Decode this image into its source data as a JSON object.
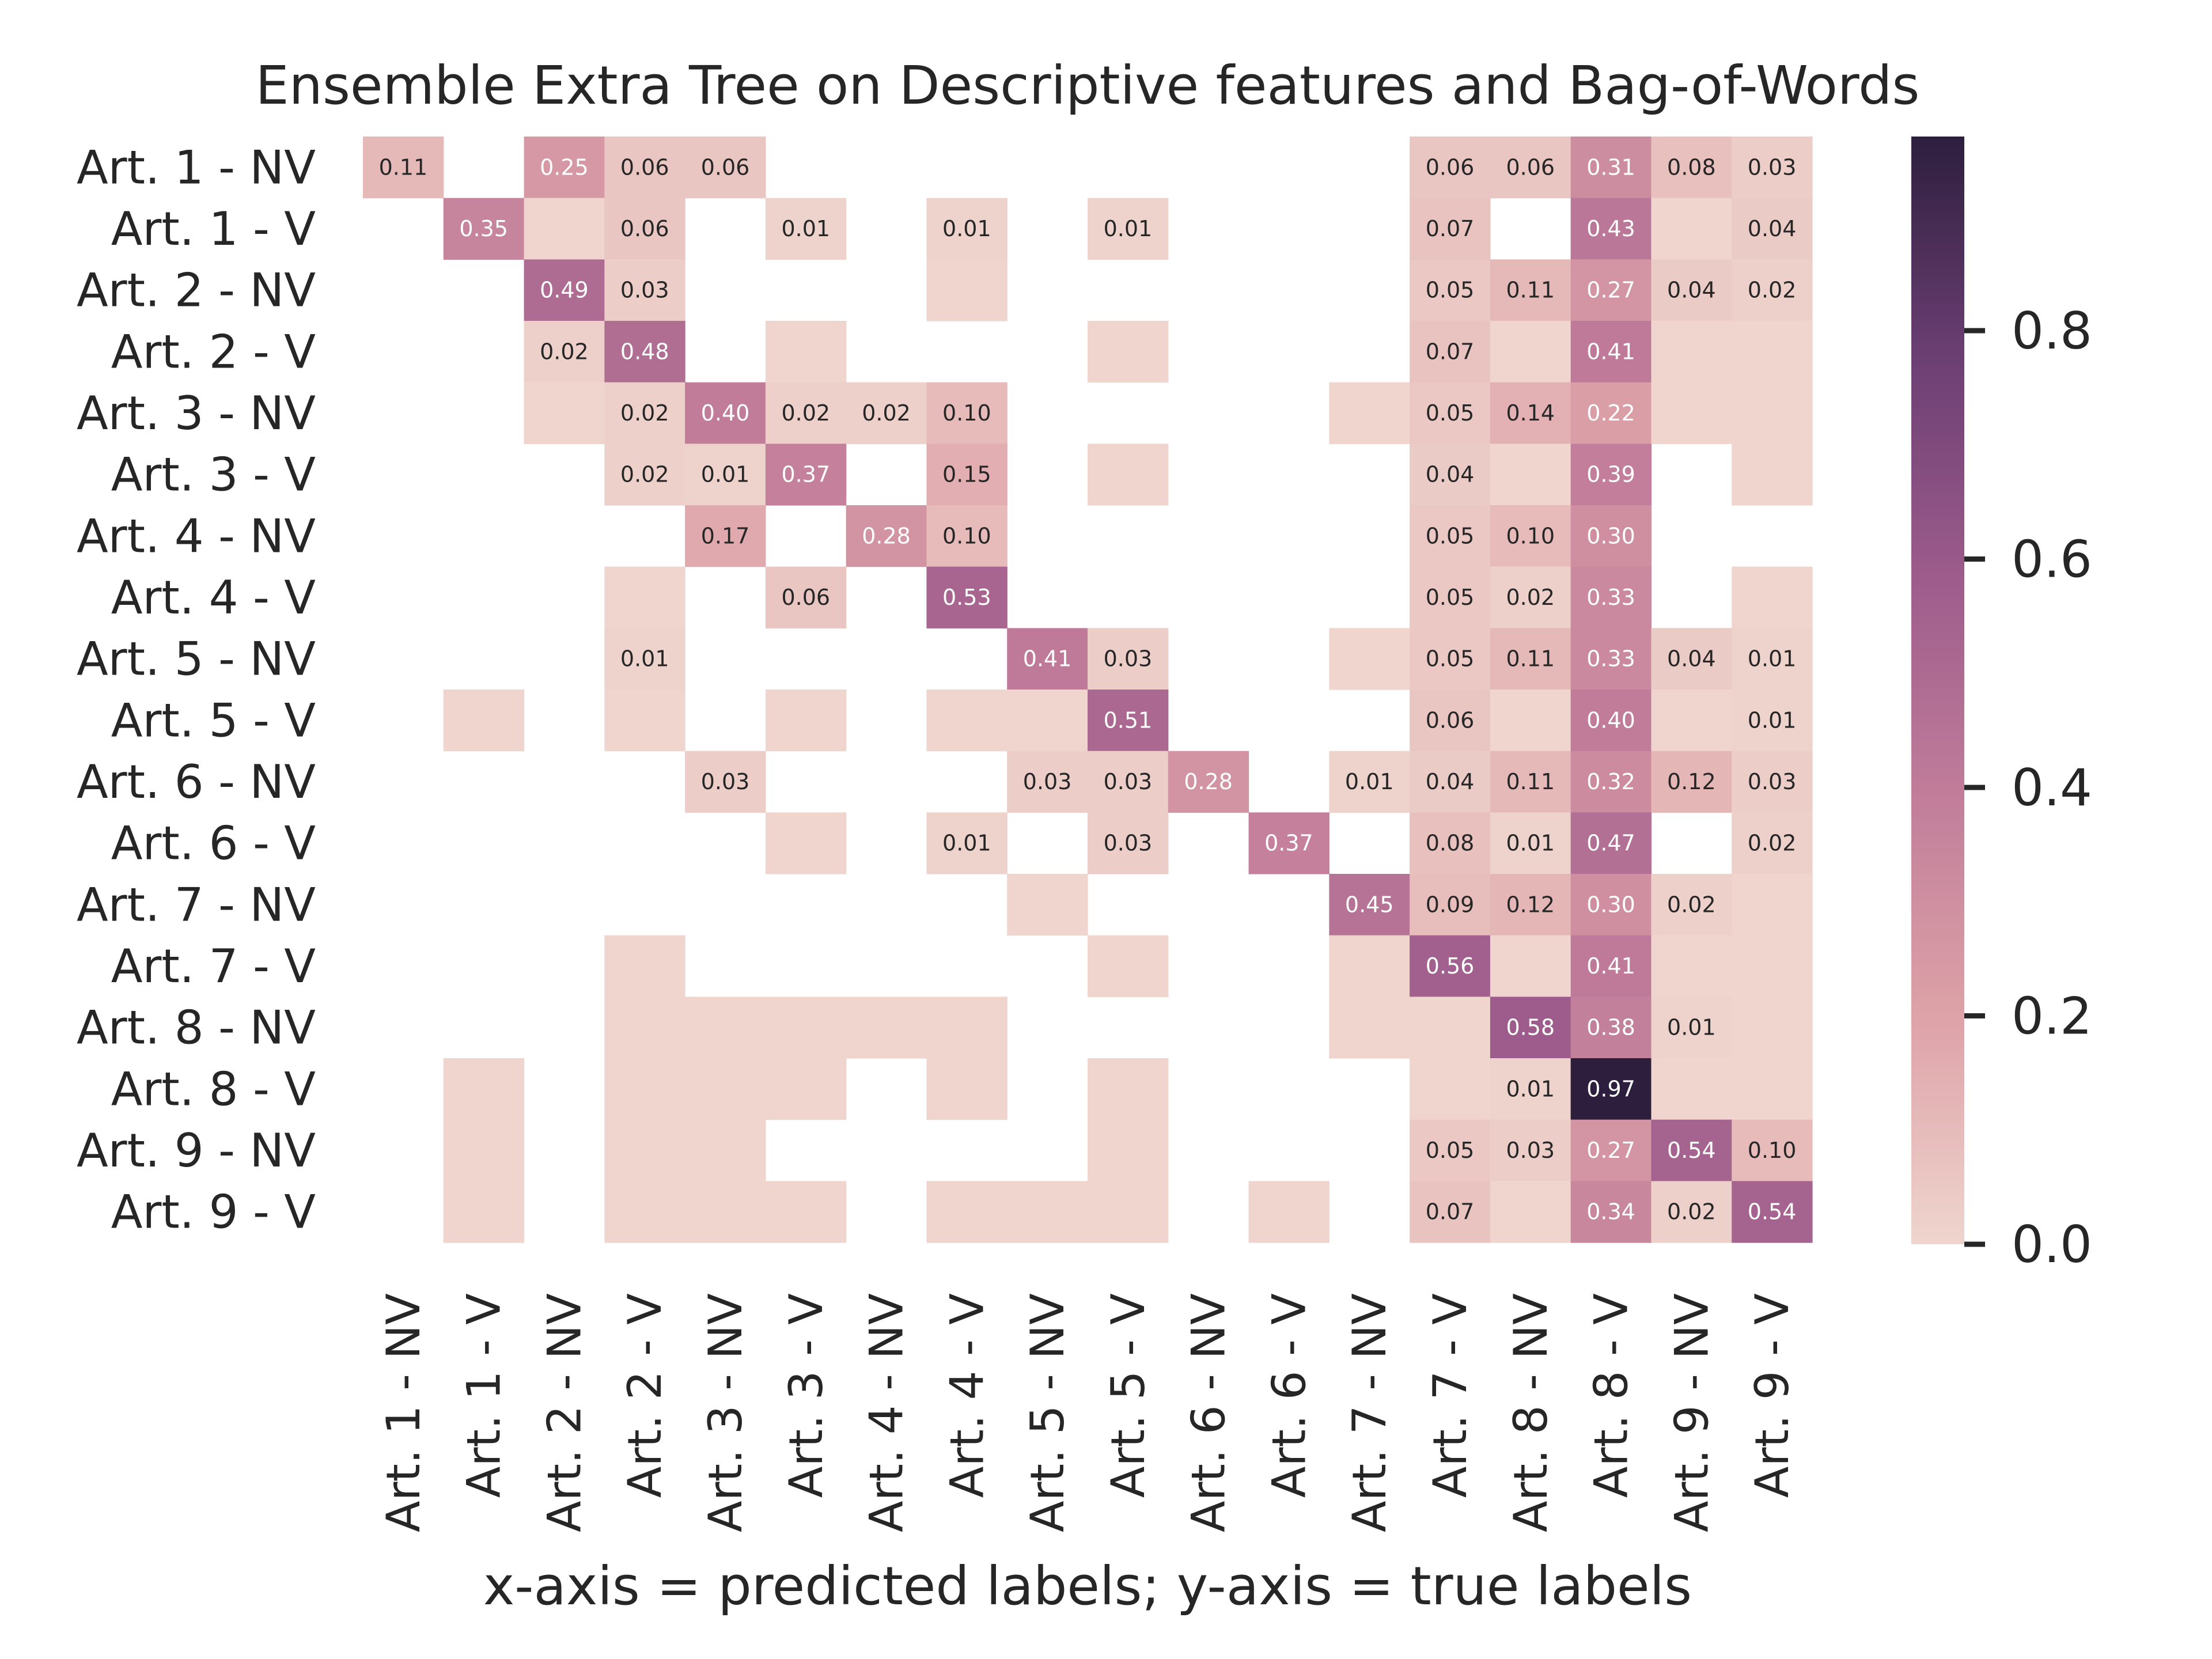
{
  "chart_data": {
    "type": "heatmap",
    "title": "Ensemble Extra Tree on Descriptive features and Bag-of-Words",
    "xlabel": "x-axis = predicted labels; y-axis = true labels",
    "ylabel": "",
    "x_categories": [
      "Art. 1 - NV",
      "Art. 1 - V",
      "Art. 2 - NV",
      "Art. 2 - V",
      "Art. 3 - NV",
      "Art. 3 - V",
      "Art. 4 - NV",
      "Art. 4 - V",
      "Art. 5 - NV",
      "Art. 5 - V",
      "Art. 6 - NV",
      "Art. 6 - V",
      "Art. 7 - NV",
      "Art. 7 - V",
      "Art. 8 - NV",
      "Art. 8 - V",
      "Art. 9 - NV",
      "Art. 9 - V"
    ],
    "y_categories": [
      "Art. 1 - NV",
      "Art. 1 - V",
      "Art. 2 - NV",
      "Art. 2 - V",
      "Art. 3 - NV",
      "Art. 3 - V",
      "Art. 4 - NV",
      "Art. 4 - V",
      "Art. 5 - NV",
      "Art. 5 - V",
      "Art. 6 - NV",
      "Art. 6 - V",
      "Art. 7 - NV",
      "Art. 7 - V",
      "Art. 8 - NV",
      "Art. 8 - V",
      "Art. 9 - NV",
      "Art. 9 - V"
    ],
    "values": [
      [
        0.11,
        null,
        0.25,
        0.06,
        0.06,
        null,
        null,
        null,
        null,
        null,
        null,
        null,
        null,
        0.06,
        0.06,
        0.31,
        0.08,
        0.03
      ],
      [
        null,
        0.35,
        0,
        0.06,
        null,
        0.01,
        null,
        0.01,
        null,
        0.01,
        null,
        null,
        null,
        0.07,
        null,
        0.43,
        0,
        0.04
      ],
      [
        null,
        null,
        0.49,
        0.03,
        null,
        null,
        null,
        0,
        null,
        null,
        null,
        null,
        null,
        0.05,
        0.11,
        0.27,
        0.04,
        0.02
      ],
      [
        null,
        null,
        0.02,
        0.48,
        null,
        0,
        null,
        null,
        null,
        0,
        null,
        null,
        null,
        0.07,
        0,
        0.41,
        0,
        0
      ],
      [
        null,
        null,
        0,
        0.02,
        0.4,
        0.02,
        0.02,
        0.1,
        null,
        null,
        null,
        null,
        0,
        0.05,
        0.14,
        0.22,
        0,
        0
      ],
      [
        null,
        null,
        null,
        0.02,
        0.01,
        0.37,
        null,
        0.15,
        null,
        0,
        null,
        null,
        null,
        0.04,
        0,
        0.39,
        null,
        0
      ],
      [
        null,
        null,
        null,
        null,
        0.17,
        null,
        0.28,
        0.1,
        null,
        null,
        null,
        null,
        null,
        0.05,
        0.1,
        0.3,
        null,
        null
      ],
      [
        null,
        null,
        null,
        0,
        null,
        0.06,
        null,
        0.53,
        null,
        null,
        null,
        null,
        null,
        0.05,
        0.02,
        0.33,
        null,
        0
      ],
      [
        null,
        null,
        null,
        0.01,
        null,
        null,
        null,
        null,
        0.41,
        0.03,
        null,
        null,
        0,
        0.05,
        0.11,
        0.33,
        0.04,
        0.01
      ],
      [
        null,
        0,
        null,
        0,
        null,
        0,
        null,
        0,
        0,
        0.51,
        null,
        null,
        null,
        0.06,
        0,
        0.4,
        0,
        0.01
      ],
      [
        null,
        null,
        null,
        null,
        0.03,
        null,
        null,
        null,
        0.03,
        0.03,
        0.28,
        null,
        0.01,
        0.04,
        0.11,
        0.32,
        0.12,
        0.03
      ],
      [
        null,
        null,
        null,
        null,
        null,
        0,
        null,
        0.01,
        null,
        0.03,
        null,
        0.37,
        null,
        0.08,
        0.01,
        0.47,
        null,
        0.02
      ],
      [
        null,
        null,
        null,
        null,
        null,
        null,
        null,
        null,
        0,
        null,
        null,
        null,
        0.45,
        0.09,
        0.12,
        0.3,
        0.02,
        0
      ],
      [
        null,
        null,
        null,
        0,
        null,
        null,
        null,
        null,
        null,
        0,
        null,
        null,
        0,
        0.56,
        0,
        0.41,
        0,
        0
      ],
      [
        null,
        null,
        null,
        0,
        0,
        0,
        0,
        0,
        null,
        null,
        null,
        null,
        0,
        0,
        0.58,
        0.38,
        0.01,
        0
      ],
      [
        null,
        0,
        null,
        0,
        0,
        0,
        null,
        0,
        null,
        0,
        null,
        null,
        null,
        0,
        0.01,
        0.97,
        0,
        0
      ],
      [
        null,
        0,
        null,
        0,
        0,
        null,
        null,
        null,
        null,
        0,
        null,
        null,
        null,
        0.05,
        0.03,
        0.27,
        0.54,
        0.1
      ],
      [
        null,
        0,
        null,
        0,
        0,
        0,
        null,
        0,
        0,
        0,
        null,
        0,
        null,
        0.07,
        0,
        0.34,
        0.02,
        0.54
      ]
    ],
    "vmin": 0.0,
    "vmax": 0.97,
    "colorbar_ticks": [
      0.0,
      0.2,
      0.4,
      0.6,
      0.8
    ],
    "colorbar_tick_labels": [
      "0.0",
      "0.2",
      "0.4",
      "0.6",
      "0.8"
    ],
    "colormap_stops": [
      "#efd5ce",
      "#dea3a8",
      "#c27e9a",
      "#9d5c8c",
      "#6c3f73",
      "#2d1e3e"
    ],
    "legend_position": "right",
    "grid": false
  }
}
